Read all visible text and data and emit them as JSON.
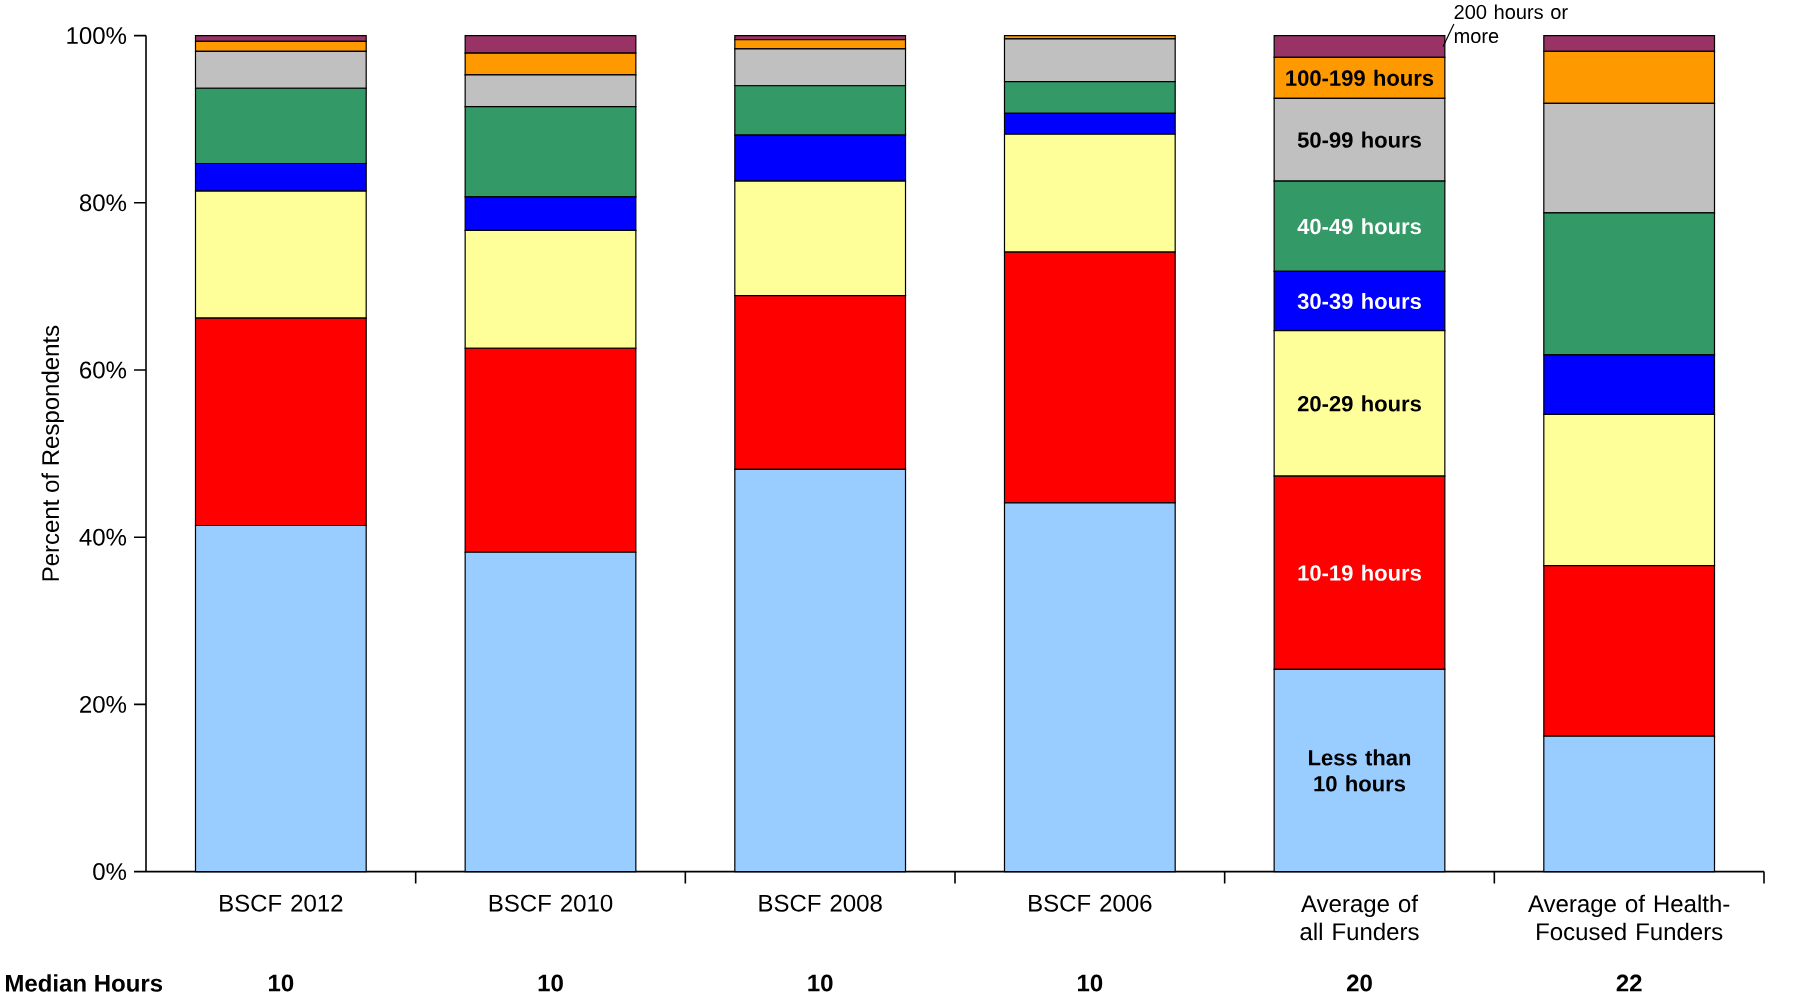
{
  "chart_data": {
    "type": "bar",
    "stacked": true,
    "ylabel": "Percent of Respondents",
    "categories": [
      "BSCF 2012",
      "BSCF 2010",
      "BSCF 2008",
      "BSCF 2006",
      "Average of all Funders",
      "Average of Health-Focused Funders"
    ],
    "series": [
      {
        "name": "Less than 10 hours",
        "color": "#99ccff",
        "values": [
          41.4,
          38.2,
          48.1,
          44.1,
          24.2,
          16.2
        ]
      },
      {
        "name": "10-19 hours",
        "color": "#ff0000",
        "values": [
          24.8,
          24.4,
          20.8,
          30.0,
          23.1,
          20.4
        ]
      },
      {
        "name": "20-29 hours",
        "color": "#ffff99",
        "values": [
          15.2,
          14.1,
          13.7,
          14.1,
          17.4,
          18.1
        ]
      },
      {
        "name": "30-39 hours",
        "color": "#0000ff",
        "values": [
          3.3,
          4.0,
          5.5,
          2.5,
          7.1,
          7.1
        ]
      },
      {
        "name": "40-49 hours",
        "color": "#339966",
        "values": [
          9.0,
          10.8,
          5.9,
          3.8,
          10.8,
          17.0
        ]
      },
      {
        "name": "50-99 hours",
        "color": "#c0c0c0",
        "values": [
          4.4,
          3.8,
          4.4,
          5.1,
          9.9,
          13.1
        ]
      },
      {
        "name": "100-199 hours",
        "color": "#ff9900",
        "values": [
          1.2,
          2.6,
          1.1,
          0.4,
          4.9,
          6.2
        ]
      },
      {
        "name": "200 hours or more",
        "color": "#993366",
        "values": [
          0.7,
          2.1,
          0.5,
          0.0,
          2.6,
          1.9
        ]
      }
    ],
    "ylim": [
      0,
      100
    ],
    "yticks": [
      {
        "value": 0,
        "label": "0%"
      },
      {
        "value": 20,
        "label": "20%"
      },
      {
        "value": 40,
        "label": "40%"
      },
      {
        "value": 60,
        "label": "60%"
      },
      {
        "value": 80,
        "label": "80%"
      },
      {
        "value": 100,
        "label": "100%"
      }
    ],
    "grid": false,
    "annotations": [
      "**Median Hours**",
      "**10**",
      "**10**",
      "**10**",
      "**10**",
      "**20**",
      "**22**"
    ]
  }
}
